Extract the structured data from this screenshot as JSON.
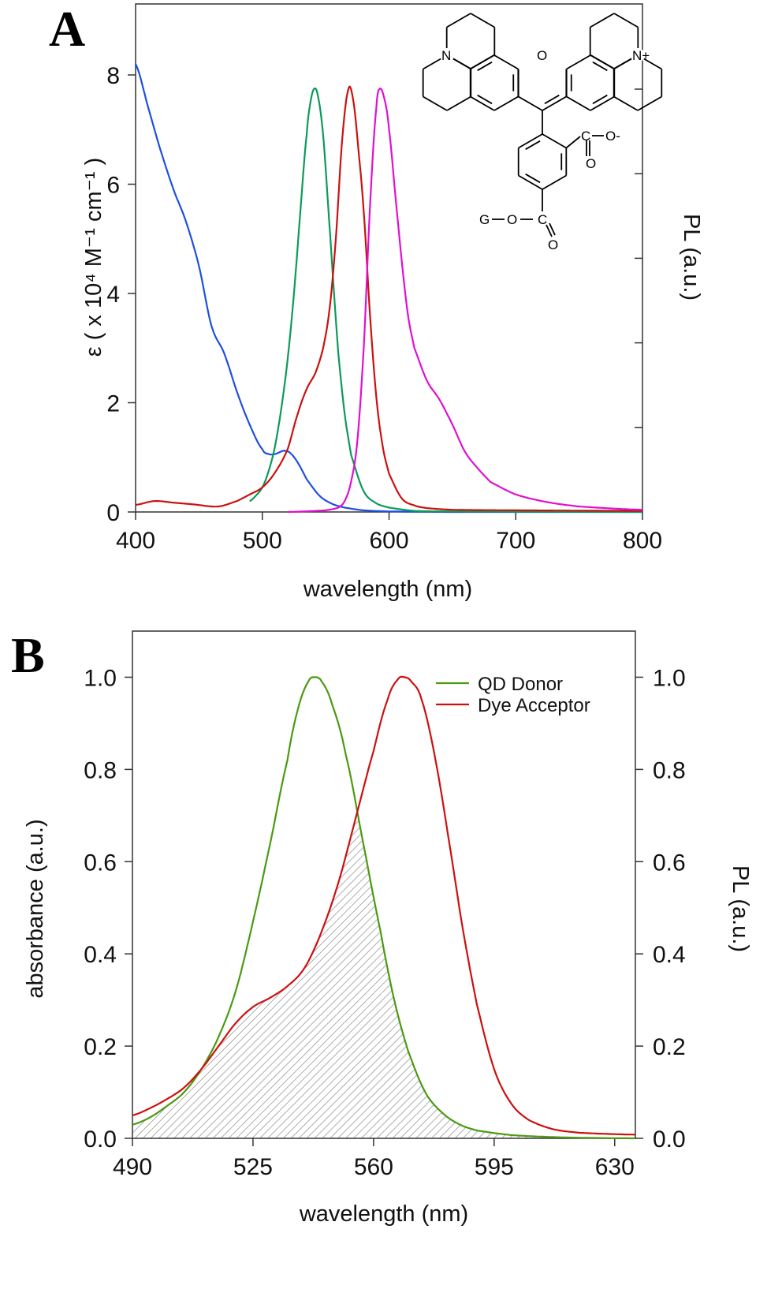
{
  "chart_data": [
    {
      "type": "line",
      "panel_label": "A",
      "xlabel": "wavelength (nm)",
      "ylabel": "ε ( x 10⁴ M⁻¹ cm⁻¹ )",
      "ylabel_right": "PL (a.u.)",
      "xlim": [
        400,
        800
      ],
      "ylim": [
        0,
        9.3
      ],
      "xticks": [
        400,
        500,
        600,
        700,
        800
      ],
      "yticks": [
        0,
        2,
        4,
        6,
        8
      ],
      "right_axis_ticks_unlabeled": true,
      "grid": false,
      "series": [
        {
          "color": "#1f4fe0",
          "x": [
            400,
            410,
            420,
            430,
            440,
            450,
            460,
            470,
            480,
            490,
            500,
            505,
            510,
            517,
            522,
            528,
            535,
            545,
            555,
            565,
            580,
            600,
            650,
            800
          ],
          "y": [
            8.2,
            7.4,
            6.6,
            5.9,
            5.3,
            4.5,
            3.4,
            2.9,
            2.2,
            1.6,
            1.15,
            1.06,
            1.06,
            1.12,
            1.08,
            0.9,
            0.6,
            0.3,
            0.15,
            0.08,
            0.03,
            0.01,
            0,
            0
          ]
        },
        {
          "color": "#0a9a5a",
          "x": [
            490,
            495,
            500,
            505,
            510,
            515,
            520,
            525,
            530,
            535,
            538,
            541,
            544,
            548,
            552,
            556,
            560,
            565,
            570,
            580,
            590,
            600,
            620,
            650,
            800
          ],
          "y": [
            0.2,
            0.3,
            0.45,
            0.75,
            1.2,
            1.9,
            2.8,
            4.0,
            5.5,
            6.9,
            7.5,
            7.75,
            7.6,
            6.9,
            5.6,
            4.2,
            2.9,
            1.8,
            1.05,
            0.38,
            0.16,
            0.08,
            0.02,
            0.01,
            0
          ]
        },
        {
          "color": "#cc1010",
          "x": [
            400,
            415,
            430,
            445,
            465,
            480,
            490,
            500,
            510,
            520,
            528,
            535,
            542,
            548,
            553,
            558,
            563,
            568,
            572,
            576,
            580,
            585,
            590,
            595,
            600,
            610,
            620,
            630,
            650,
            700,
            800
          ],
          "y": [
            0.13,
            0.2,
            0.17,
            0.14,
            0.1,
            0.2,
            0.32,
            0.45,
            0.72,
            1.15,
            1.8,
            2.25,
            2.55,
            3.0,
            3.7,
            5.0,
            6.8,
            7.75,
            7.5,
            6.6,
            5.5,
            3.6,
            2.1,
            1.2,
            0.7,
            0.25,
            0.12,
            0.07,
            0.04,
            0.03,
            0.02
          ]
        },
        {
          "color": "#e010d0",
          "x": [
            520,
            550,
            560,
            565,
            570,
            575,
            580,
            585,
            590,
            593,
            597,
            600,
            605,
            610,
            615,
            620,
            630,
            640,
            650,
            660,
            670,
            680,
            700,
            725,
            750,
            800
          ],
          "y": [
            0,
            0.03,
            0.08,
            0.2,
            0.55,
            1.3,
            3.0,
            5.6,
            7.4,
            7.75,
            7.5,
            7.0,
            5.8,
            4.6,
            3.6,
            3.0,
            2.4,
            2.05,
            1.6,
            1.1,
            0.8,
            0.55,
            0.32,
            0.18,
            0.1,
            0.04
          ]
        }
      ]
    },
    {
      "type": "line",
      "panel_label": "B",
      "xlabel": "wavelength (nm)",
      "ylabel": "absorbance (a.u.)",
      "ylabel_right": "PL (a.u.)",
      "ylabel_color": "#d81010",
      "ylabel_right_color": "#2a9a10",
      "xlim": [
        490,
        636
      ],
      "ylim": [
        0,
        1.1
      ],
      "xticks": [
        490,
        525,
        560,
        595,
        630
      ],
      "yticks": [
        0.0,
        0.2,
        0.4,
        0.6,
        0.8,
        1.0
      ],
      "ytick_labels": [
        "0.0",
        "0.2",
        "0.4",
        "0.6",
        "0.8",
        "1.0"
      ],
      "grid": false,
      "legend_position": "top-right",
      "overlap_fill": "hatched gray",
      "series": [
        {
          "name": "QD Donor",
          "color": "#4a9a10",
          "x": [
            490,
            495,
            500,
            505,
            510,
            515,
            520,
            525,
            530,
            535,
            538,
            541,
            543,
            545,
            548,
            552,
            557,
            562,
            566,
            570,
            575,
            580,
            585,
            590,
            600,
            615,
            636
          ],
          "y": [
            0.03,
            0.045,
            0.07,
            0.1,
            0.15,
            0.22,
            0.32,
            0.47,
            0.64,
            0.82,
            0.93,
            0.99,
            1.0,
            0.99,
            0.94,
            0.83,
            0.64,
            0.45,
            0.3,
            0.19,
            0.1,
            0.055,
            0.03,
            0.017,
            0.007,
            0.002,
            0
          ]
        },
        {
          "name": "Dye Acceptor",
          "color": "#cc1010",
          "x": [
            490,
            495,
            500,
            505,
            510,
            515,
            520,
            525,
            530,
            535,
            540,
            545,
            550,
            555,
            560,
            564,
            567,
            569,
            571,
            574,
            578,
            582,
            586,
            590,
            595,
            600,
            605,
            612,
            620,
            636
          ],
          "y": [
            0.05,
            0.065,
            0.085,
            0.11,
            0.15,
            0.2,
            0.25,
            0.285,
            0.305,
            0.33,
            0.37,
            0.45,
            0.56,
            0.7,
            0.84,
            0.95,
            0.995,
            1.0,
            0.99,
            0.95,
            0.82,
            0.64,
            0.45,
            0.29,
            0.15,
            0.075,
            0.04,
            0.02,
            0.012,
            0.008
          ]
        }
      ]
    }
  ],
  "structure": {
    "atoms": {
      "n_left": "N",
      "o_ring": "O",
      "n_right": "N+",
      "c_acid": "C",
      "o_minus": "O-",
      "o_acid_dbl": "O",
      "c_ester": "C",
      "o_ester": "O",
      "o_ester_dbl": "O",
      "g": "G"
    }
  }
}
